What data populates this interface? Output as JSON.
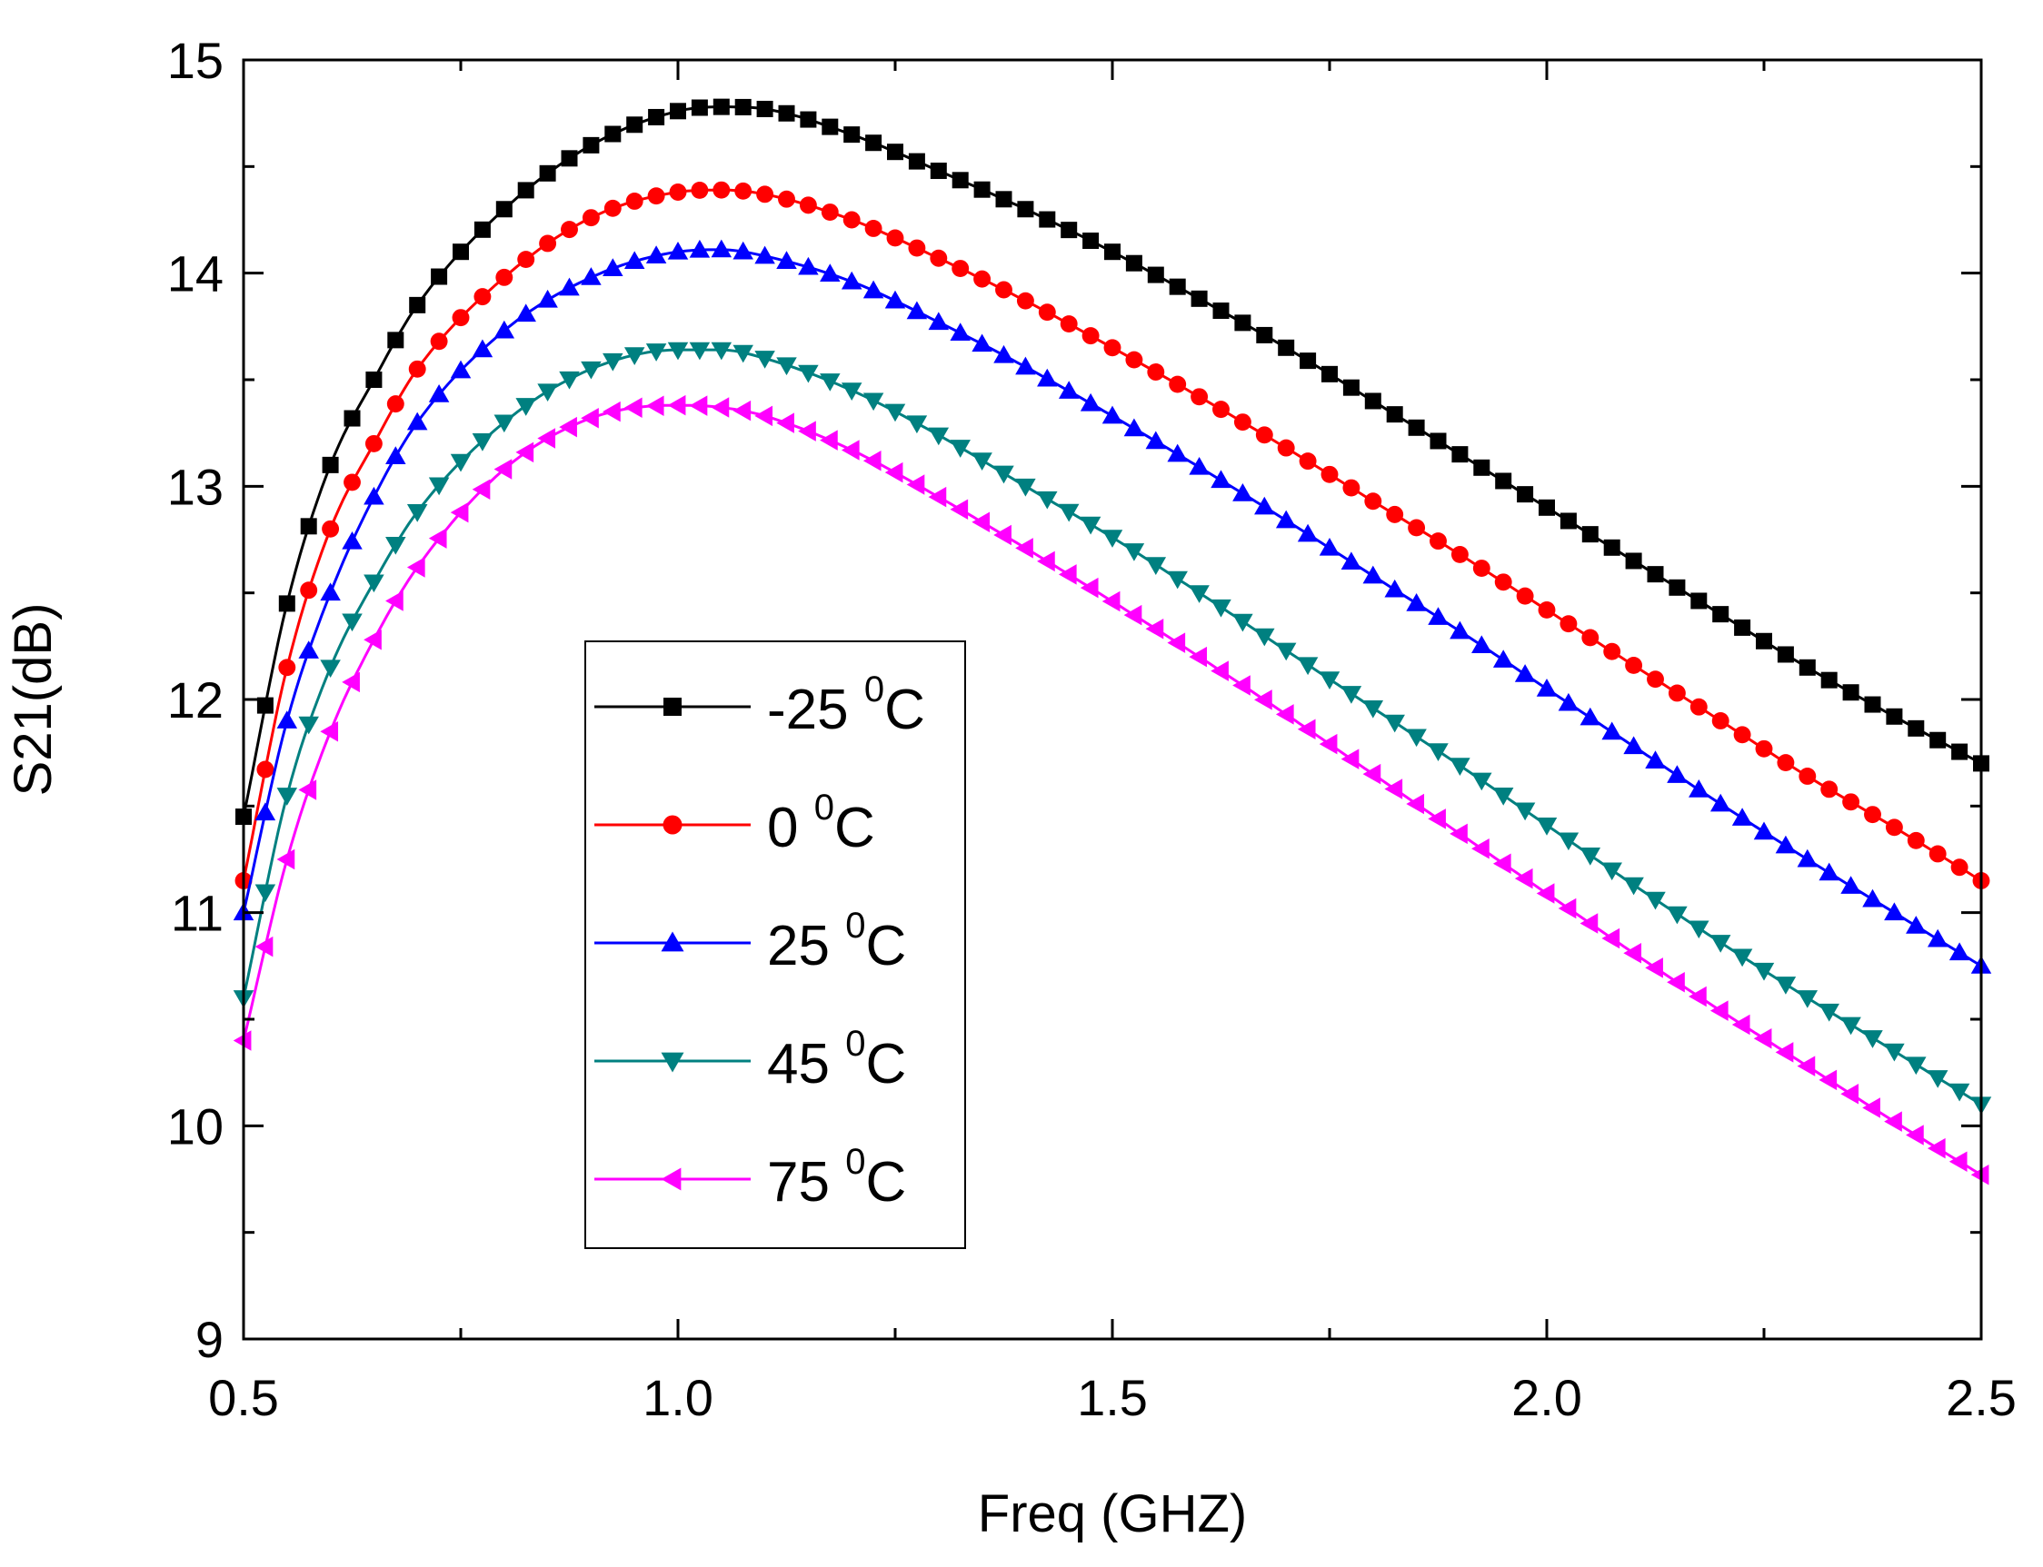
{
  "chart_data": {
    "type": "line",
    "title": "",
    "xlabel": "Freq (GHZ)",
    "ylabel": "S21(dB)",
    "xlim": [
      0.5,
      2.5
    ],
    "ylim": [
      9,
      15
    ],
    "xticks": [
      0.5,
      1.0,
      1.5,
      2.0,
      2.5
    ],
    "xtick_labels": [
      "0.5",
      "1.0",
      "1.5",
      "2.0",
      "2.5"
    ],
    "yticks": [
      9,
      10,
      11,
      12,
      13,
      14,
      15
    ],
    "ytick_labels": [
      "9",
      "10",
      "11",
      "12",
      "13",
      "14",
      "15"
    ],
    "grid": false,
    "legend_position": "center-left",
    "series": [
      {
        "name": "-25 °C",
        "label_main": "-25 ",
        "label_sup": "0",
        "label_unit": "C",
        "color": "#000000",
        "marker": "square",
        "x": [
          0.5,
          0.55,
          0.6,
          0.65,
          0.7,
          0.8,
          0.9,
          1.0,
          1.05,
          1.1,
          1.2,
          1.3,
          1.4,
          1.5,
          1.6,
          1.7,
          1.8,
          1.9,
          2.0,
          2.1,
          2.2,
          2.3,
          2.4,
          2.5
        ],
        "y": [
          11.45,
          12.45,
          13.1,
          13.5,
          13.85,
          14.3,
          14.6,
          14.76,
          14.78,
          14.77,
          14.65,
          14.48,
          14.3,
          14.1,
          13.88,
          13.65,
          13.4,
          13.15,
          12.9,
          12.65,
          12.4,
          12.15,
          11.92,
          11.7
        ]
      },
      {
        "name": "0 °C",
        "label_main": "0 ",
        "label_sup": "0",
        "label_unit": "C",
        "color": "#ff0000",
        "marker": "circle",
        "x": [
          0.5,
          0.55,
          0.6,
          0.65,
          0.7,
          0.8,
          0.9,
          1.0,
          1.05,
          1.1,
          1.2,
          1.3,
          1.4,
          1.5,
          1.6,
          1.7,
          1.8,
          1.9,
          2.0,
          2.1,
          2.2,
          2.3,
          2.4,
          2.5
        ],
        "y": [
          11.15,
          12.15,
          12.8,
          13.2,
          13.55,
          13.98,
          14.26,
          14.38,
          14.39,
          14.37,
          14.25,
          14.07,
          13.87,
          13.65,
          13.42,
          13.18,
          12.93,
          12.68,
          12.42,
          12.16,
          11.9,
          11.64,
          11.4,
          11.15
        ]
      },
      {
        "name": "25 °C",
        "label_main": "25 ",
        "label_sup": "0",
        "label_unit": "C",
        "color": "#0000ff",
        "marker": "triangle-up",
        "x": [
          0.5,
          0.55,
          0.6,
          0.65,
          0.7,
          0.8,
          0.9,
          1.0,
          1.05,
          1.1,
          1.2,
          1.3,
          1.4,
          1.5,
          1.6,
          1.7,
          1.8,
          1.9,
          2.0,
          2.1,
          2.2,
          2.3,
          2.4,
          2.5
        ],
        "y": [
          11.0,
          11.9,
          12.5,
          12.95,
          13.3,
          13.73,
          13.98,
          14.1,
          14.11,
          14.08,
          13.96,
          13.77,
          13.56,
          13.33,
          13.09,
          12.84,
          12.58,
          12.32,
          12.05,
          11.78,
          11.51,
          11.25,
          11.0,
          10.75
        ]
      },
      {
        "name": "45 °C",
        "label_main": "45 ",
        "label_sup": "0",
        "label_unit": "C",
        "color": "#008080",
        "marker": "triangle-down",
        "x": [
          0.5,
          0.55,
          0.6,
          0.65,
          0.7,
          0.8,
          0.9,
          1.0,
          1.05,
          1.1,
          1.2,
          1.3,
          1.4,
          1.5,
          1.6,
          1.7,
          1.8,
          1.9,
          2.0,
          2.1,
          2.2,
          2.3,
          2.4,
          2.5
        ],
        "y": [
          10.6,
          11.55,
          12.15,
          12.55,
          12.88,
          13.3,
          13.55,
          13.64,
          13.64,
          13.6,
          13.45,
          13.24,
          13.0,
          12.76,
          12.5,
          12.23,
          11.96,
          11.69,
          11.41,
          11.13,
          10.86,
          10.6,
          10.35,
          10.1
        ]
      },
      {
        "name": "75 °C",
        "label_main": "75 ",
        "label_sup": "0",
        "label_unit": "C",
        "color": "#ff00ff",
        "marker": "triangle-left",
        "x": [
          0.5,
          0.55,
          0.6,
          0.65,
          0.7,
          0.8,
          0.9,
          1.0,
          1.05,
          1.1,
          1.2,
          1.3,
          1.4,
          1.5,
          1.6,
          1.7,
          1.8,
          1.9,
          2.0,
          2.1,
          2.2,
          2.3,
          2.4,
          2.5
        ],
        "y": [
          10.4,
          11.25,
          11.85,
          12.28,
          12.62,
          13.08,
          13.32,
          13.38,
          13.37,
          13.33,
          13.17,
          12.95,
          12.71,
          12.46,
          12.2,
          11.93,
          11.65,
          11.37,
          11.09,
          10.81,
          10.54,
          10.28,
          10.02,
          9.77
        ]
      }
    ]
  }
}
